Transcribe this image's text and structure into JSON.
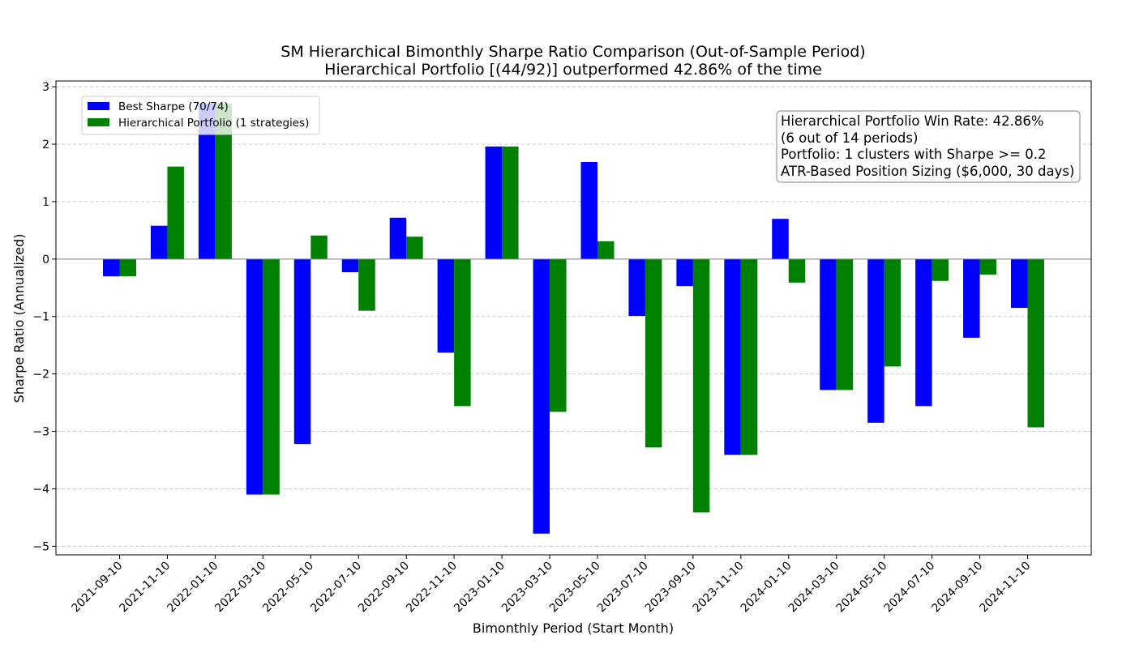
{
  "chart_data": {
    "type": "bar",
    "title": "SM Hierarchical Bimonthly Sharpe Ratio Comparison (Out-of-Sample Period)",
    "subtitle": "Hierarchical Portfolio [(44/92)] outperformed 42.86% of the time",
    "xlabel": "Bimonthly Period (Start Month)",
    "ylabel": "Sharpe Ratio (Annualized)",
    "ylim": [
      -5.15,
      3.1
    ],
    "yticks": [
      3,
      2,
      1,
      0,
      -1,
      -2,
      -3,
      -4,
      -5
    ],
    "ytick_labels": [
      "3",
      "2",
      "1",
      "0",
      "−1",
      "−2",
      "−3",
      "−4",
      "−5"
    ],
    "grid": "horizontal-dashed",
    "legend_position": "top-left",
    "categories": [
      "2021-09-10",
      "2021-11-10",
      "2022-01-10",
      "2022-03-10",
      "2022-05-10",
      "2022-07-10",
      "2022-09-10",
      "2022-11-10",
      "2023-01-10",
      "2023-03-10",
      "2023-05-10",
      "2023-07-10",
      "2023-09-10",
      "2023-11-10",
      "2024-01-10",
      "2024-03-10",
      "2024-05-10",
      "2024-07-10",
      "2024-09-10",
      "2024-11-10"
    ],
    "series": [
      {
        "name": "Best Sharpe (70/74)",
        "color": "#0000ff",
        "values": [
          -0.3,
          0.58,
          2.71,
          -4.1,
          -3.22,
          -0.23,
          0.72,
          -1.63,
          1.96,
          -4.78,
          1.69,
          -0.99,
          -0.47,
          -3.41,
          0.7,
          -2.28,
          -2.85,
          -2.56,
          -1.37,
          -0.85
        ]
      },
      {
        "name": "Hierarchical Portfolio (1 strategies)",
        "color": "#008000",
        "values": [
          -0.3,
          1.61,
          2.71,
          -4.1,
          0.41,
          -0.9,
          0.39,
          -2.56,
          1.96,
          -2.66,
          0.31,
          -3.28,
          -4.41,
          -3.41,
          -0.41,
          -2.28,
          -1.87,
          -0.38,
          -0.27,
          -2.93
        ]
      }
    ],
    "annotation": {
      "lines": [
        "Hierarchical Portfolio Win Rate: 42.86%",
        "(6 out of 14 periods)",
        "Portfolio: 1 clusters with Sharpe >= 0.2",
        "ATR-Based Position Sizing ($6,000, 30 days)"
      ],
      "position": "top-right"
    }
  }
}
